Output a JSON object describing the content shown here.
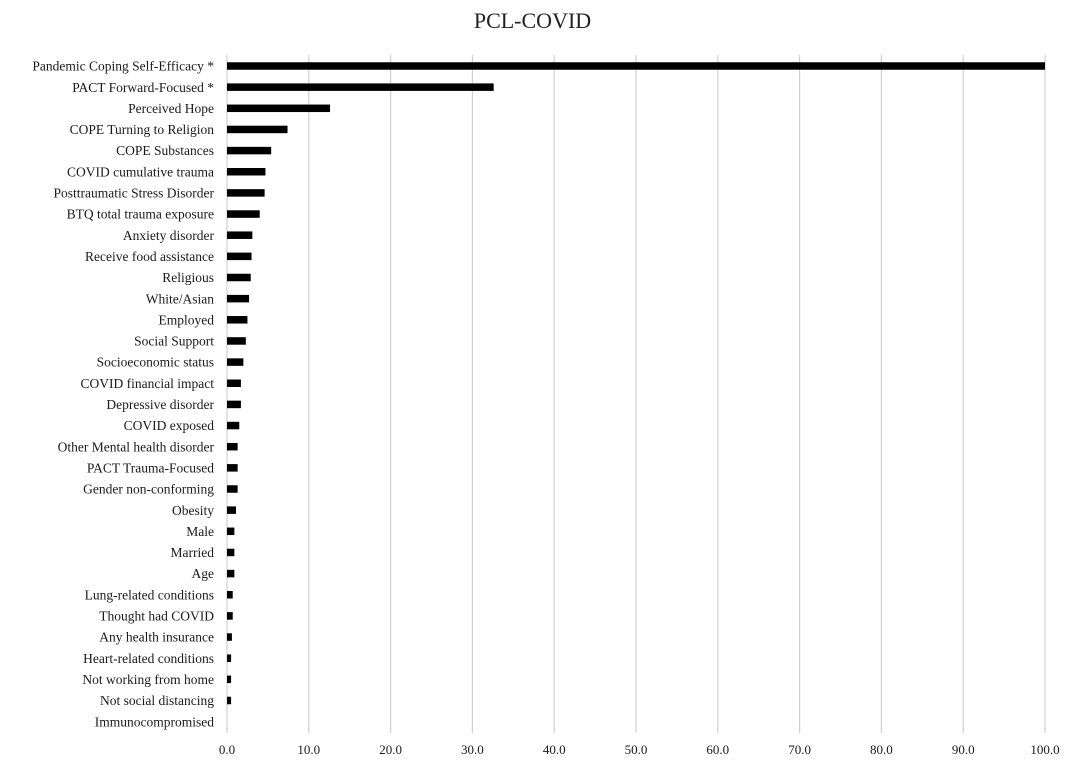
{
  "chart_data": {
    "type": "bar",
    "orientation": "horizontal",
    "title": "PCL-COVID",
    "xlabel": "",
    "ylabel": "",
    "xlim": [
      0,
      100
    ],
    "x_ticks": [
      "0.0",
      "10.0",
      "20.0",
      "30.0",
      "40.0",
      "50.0",
      "60.0",
      "70.0",
      "80.0",
      "90.0",
      "100.0"
    ],
    "grid": "vertical",
    "legend": "none",
    "bar_color": "#000000",
    "grid_color": "#d0d0d0",
    "categories": [
      "Pandemic Coping Self-Efficacy *",
      "PACT Forward-Focused *",
      "Perceived Hope",
      "COPE Turning to Religion",
      "COPE Substances",
      "COVID cumulative trauma",
      "Posttraumatic Stress Disorder",
      "BTQ total trauma exposure",
      "Anxiety disorder",
      "Receive food assistance",
      "Religious",
      "White/Asian",
      "Employed",
      "Social Support",
      "Socioeconomic status",
      "COVID financial impact",
      "Depressive disorder",
      "COVID exposed",
      "Other Mental health disorder",
      "PACT Trauma-Focused",
      "Gender non-conforming",
      "Obesity",
      "Male",
      "Married",
      "Age",
      "Lung-related conditions",
      "Thought had COVID",
      "Any health insurance",
      "Heart-related conditions",
      "Not working from home",
      "Not social distancing",
      "Immunocompromised"
    ],
    "values": [
      100.0,
      32.6,
      12.6,
      7.4,
      5.4,
      4.7,
      4.6,
      4.0,
      3.1,
      3.0,
      2.9,
      2.7,
      2.5,
      2.3,
      2.0,
      1.7,
      1.7,
      1.5,
      1.3,
      1.3,
      1.3,
      1.1,
      0.9,
      0.9,
      0.9,
      0.7,
      0.7,
      0.6,
      0.5,
      0.5,
      0.5,
      0.0
    ]
  }
}
